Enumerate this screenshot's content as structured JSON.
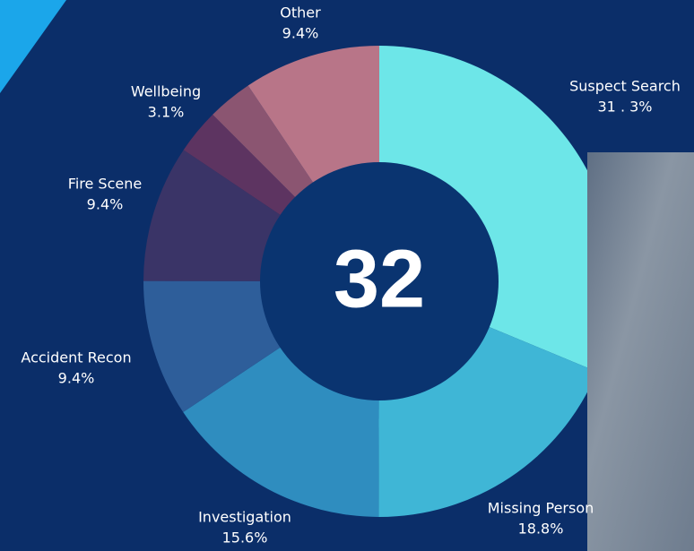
{
  "chart_data": {
    "type": "donut",
    "center_label": "32",
    "categories": [
      "Suspect Search",
      "Missing Person",
      "Investigation",
      "Accident Recon",
      "Fire Scene",
      "Wellbeing",
      null,
      "Other"
    ],
    "values": [
      31.3,
      18.8,
      15.6,
      9.4,
      9.4,
      3.1,
      3.1,
      9.4
    ],
    "value_labels": [
      "31 . 3%",
      "18.8%",
      "15.6%",
      "9.4%",
      "9.4%",
      "3.1%",
      null,
      "9.4%"
    ],
    "colors": [
      "#6de6e8",
      "#3fb6d6",
      "#2f8dbf",
      "#2e5e9a",
      "#3a3467",
      "#5d3461",
      "#8b5571",
      "#b87588"
    ]
  }
}
